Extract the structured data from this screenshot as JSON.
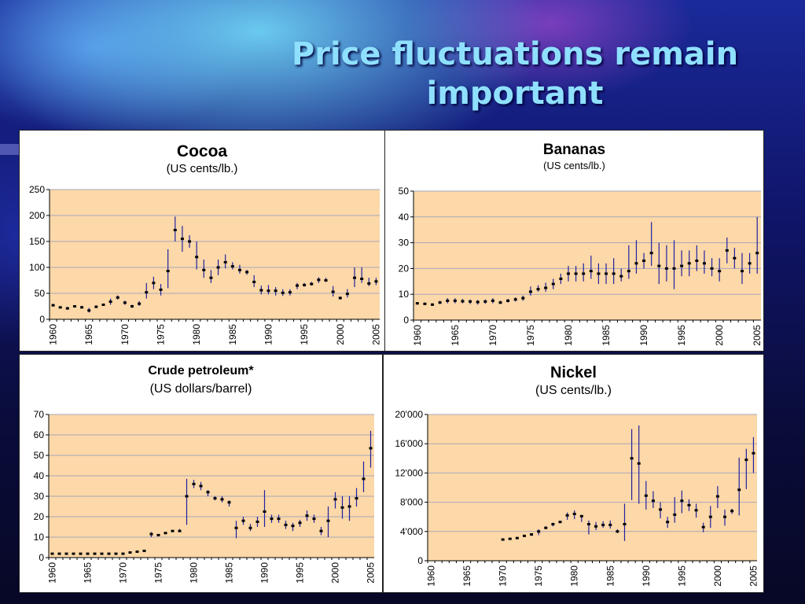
{
  "slide": {
    "title_line1": "Price fluctuations remain",
    "title_line2": "important"
  },
  "colors": {
    "plot_bg": "#fdd8a8",
    "grid": "#a8a8b8",
    "bar": "#2020a0",
    "marker": "#000000"
  },
  "chart_data": [
    {
      "id": "cocoa",
      "type": "errorbar",
      "title": "Cocoa",
      "subtitle": "(US cents/lb.)",
      "ylim": [
        0,
        250
      ],
      "yticks": [
        0,
        50,
        100,
        150,
        200,
        250
      ],
      "ytick_labels": [
        "0",
        "50",
        "100",
        "150",
        "200",
        "250"
      ],
      "xlim": [
        1960,
        2005
      ],
      "xticks": [
        "1960",
        "1965",
        "1970",
        "1975",
        "1980",
        "1985",
        "1990",
        "1995",
        "2000",
        "2005"
      ],
      "series": [
        {
          "x": [
            1960,
            1961,
            1962,
            1963,
            1964,
            1965,
            1966,
            1967,
            1968,
            1969,
            1970,
            1971,
            1972,
            1973,
            1974,
            1975,
            1976,
            1977,
            1978,
            1979,
            1980,
            1981,
            1982,
            1983,
            1984,
            1985,
            1986,
            1987,
            1988,
            1989,
            1990,
            1991,
            1992,
            1993,
            1994,
            1995,
            1996,
            1997,
            1998,
            1999,
            2000,
            2001,
            2002,
            2003,
            2004,
            2005
          ],
          "mean": [
            27,
            23,
            21,
            25,
            23,
            17,
            24,
            28,
            34,
            42,
            32,
            25,
            30,
            52,
            70,
            57,
            93,
            172,
            155,
            150,
            120,
            95,
            80,
            100,
            110,
            102,
            95,
            91,
            72,
            56,
            55,
            55,
            51,
            52,
            65,
            66,
            68,
            76,
            75,
            53,
            41,
            49,
            80,
            78,
            69,
            73
          ],
          "low": [
            25,
            21,
            19,
            23,
            21,
            13,
            22,
            26,
            28,
            38,
            28,
            22,
            26,
            40,
            58,
            46,
            60,
            150,
            130,
            138,
            96,
            80,
            70,
            85,
            98,
            96,
            88,
            86,
            62,
            48,
            48,
            46,
            45,
            46,
            58,
            63,
            65,
            70,
            72,
            44,
            38,
            42,
            62,
            70,
            64,
            66
          ],
          "high": [
            30,
            25,
            24,
            27,
            26,
            22,
            27,
            30,
            40,
            46,
            36,
            28,
            35,
            70,
            82,
            68,
            135,
            198,
            180,
            162,
            150,
            115,
            95,
            115,
            125,
            110,
            105,
            95,
            85,
            65,
            66,
            62,
            58,
            58,
            70,
            70,
            72,
            81,
            80,
            64,
            44,
            58,
            100,
            100,
            80,
            80
          ]
        }
      ]
    },
    {
      "id": "bananas",
      "type": "errorbar",
      "title": "Bananas",
      "subtitle": "(US cents/lb.)",
      "ylim": [
        0,
        50
      ],
      "yticks": [
        0,
        10,
        20,
        30,
        40,
        50
      ],
      "ytick_labels": [
        "0",
        "10",
        "20",
        "30",
        "40",
        "50"
      ],
      "xlim": [
        1960,
        2005
      ],
      "xticks": [
        "1960",
        "1965",
        "1970",
        "1975",
        "1980",
        "1985",
        "1990",
        "1995",
        "2000",
        "2005"
      ],
      "series": [
        {
          "x": [
            1960,
            1961,
            1962,
            1963,
            1964,
            1965,
            1966,
            1967,
            1968,
            1969,
            1970,
            1971,
            1972,
            1973,
            1974,
            1975,
            1976,
            1977,
            1978,
            1979,
            1980,
            1981,
            1982,
            1983,
            1984,
            1985,
            1986,
            1987,
            1988,
            1989,
            1990,
            1991,
            1992,
            1993,
            1994,
            1995,
            1996,
            1997,
            1998,
            1999,
            2000,
            2001,
            2002,
            2003,
            2004,
            2005
          ],
          "mean": [
            6.5,
            6.3,
            6,
            6.8,
            7.5,
            7.5,
            7.3,
            7.2,
            7,
            7.2,
            7.5,
            6.8,
            7.5,
            8,
            8.5,
            11,
            12,
            12.5,
            14,
            16,
            18,
            18,
            18,
            19,
            18,
            18,
            18,
            17,
            19,
            22,
            23,
            26,
            21,
            20,
            20,
            21,
            22,
            23,
            22,
            20,
            19,
            27,
            24,
            19,
            22,
            26
          ],
          "low": [
            6,
            5.8,
            5.5,
            6.2,
            6.5,
            6.5,
            6.5,
            6.2,
            6,
            6.3,
            6.5,
            6.2,
            6.8,
            7.2,
            7.5,
            9.5,
            11,
            11,
            12,
            14,
            15,
            15,
            15,
            16,
            14,
            14,
            14,
            15,
            16,
            18,
            20,
            21,
            14,
            15,
            12,
            17,
            17,
            19,
            18,
            17,
            15,
            22,
            20,
            14,
            18,
            18
          ],
          "high": [
            7,
            6.8,
            6.5,
            7.5,
            8.5,
            8.5,
            8.2,
            8,
            7.8,
            8,
            8.5,
            7.5,
            8.2,
            8.8,
            9.5,
            13,
            13.5,
            14.5,
            16,
            18,
            21,
            21,
            22,
            25,
            22,
            22,
            24,
            20,
            29,
            31,
            26,
            38,
            30,
            29,
            31,
            27,
            27,
            29,
            27,
            24,
            24,
            32,
            28,
            26,
            26,
            40
          ]
        }
      ]
    },
    {
      "id": "crude",
      "type": "errorbar",
      "title": "Crude petroleum*",
      "subtitle": "(US dollars/barrel)",
      "ylim": [
        0,
        70
      ],
      "yticks": [
        0,
        10,
        20,
        30,
        40,
        50,
        60,
        70
      ],
      "ytick_labels": [
        "0",
        "10",
        "20",
        "30",
        "40",
        "50",
        "60",
        "70"
      ],
      "xlim": [
        1960,
        2005
      ],
      "xticks": [
        "1960",
        "1965",
        "1970",
        "1975",
        "1980",
        "1985",
        "1990",
        "1995",
        "2000",
        "2005"
      ],
      "series": [
        {
          "x": [
            1960,
            1961,
            1962,
            1963,
            1964,
            1965,
            1966,
            1967,
            1968,
            1969,
            1970,
            1971,
            1972,
            1973,
            1974,
            1975,
            1976,
            1977,
            1978,
            1979,
            1980,
            1981,
            1982,
            1983,
            1984,
            1985,
            1986,
            1987,
            1988,
            1989,
            1990,
            1991,
            1992,
            1993,
            1994,
            1995,
            1996,
            1997,
            1998,
            1999,
            2000,
            2001,
            2002,
            2003,
            2004,
            2005
          ],
          "mean": [
            1.9,
            1.9,
            1.9,
            1.9,
            1.9,
            1.9,
            1.9,
            1.9,
            1.9,
            1.9,
            1.9,
            2.5,
            2.9,
            3.3,
            11.5,
            11,
            12,
            13,
            13,
            30,
            36,
            35,
            32,
            29,
            28.5,
            27,
            14.5,
            18,
            14.5,
            17.5,
            22.5,
            19,
            19,
            16,
            15.5,
            17,
            20.5,
            19,
            13,
            18,
            28.5,
            24.5,
            25,
            29,
            38.5,
            53.5
          ],
          "low": [
            1.8,
            1.8,
            1.8,
            1.8,
            1.8,
            1.8,
            1.8,
            1.8,
            1.8,
            1.8,
            1.8,
            2.3,
            2.6,
            3,
            10,
            10.5,
            11.5,
            12.5,
            12.5,
            16,
            34,
            33,
            30,
            28,
            27,
            25,
            9.5,
            16,
            13,
            15,
            15,
            17,
            17,
            14,
            13,
            15,
            18,
            17,
            11,
            10,
            24,
            19,
            18,
            25,
            32,
            44
          ]
        }
      ],
      "high_series": [
        2.0,
        2.0,
        2.0,
        2.0,
        2.0,
        2.0,
        2.0,
        2.0,
        2.0,
        2.0,
        2.0,
        2.7,
        3.1,
        3.6,
        12.5,
        11.5,
        12.5,
        13.5,
        14,
        38.5,
        38,
        37,
        33,
        30,
        30,
        28,
        18,
        20,
        16.5,
        20,
        33,
        21,
        21,
        18,
        17,
        18.5,
        23,
        21,
        15,
        25,
        32,
        30,
        30,
        34,
        47,
        62
      ]
    },
    {
      "id": "nickel",
      "type": "errorbar",
      "title": "Nickel",
      "subtitle": "(US cents/lb.)",
      "ylim": [
        0,
        20000
      ],
      "yticks": [
        0,
        4000,
        8000,
        12000,
        16000,
        20000
      ],
      "ytick_labels": [
        "0",
        "4'000",
        "8'000",
        "12'000",
        "16'000",
        "20'000"
      ],
      "xlim": [
        1960,
        2005
      ],
      "xticks": [
        "1960",
        "1965",
        "1970",
        "1975",
        "1980",
        "1985",
        "1990",
        "1995",
        "2000",
        "2005"
      ],
      "series": [
        {
          "x": [
            1970,
            1971,
            1972,
            1973,
            1974,
            1975,
            1976,
            1977,
            1978,
            1979,
            1980,
            1981,
            1982,
            1983,
            1984,
            1985,
            1986,
            1987,
            1988,
            1989,
            1990,
            1991,
            1992,
            1993,
            1994,
            1995,
            1996,
            1997,
            1998,
            1999,
            2000,
            2001,
            2002,
            2003,
            2004,
            2005
          ],
          "mean": [
            2900,
            3000,
            3100,
            3400,
            3600,
            4000,
            4500,
            5000,
            5300,
            6200,
            6400,
            6100,
            5000,
            4700,
            4900,
            4900,
            4000,
            5000,
            14000,
            13300,
            8900,
            8200,
            7000,
            5300,
            6300,
            8200,
            7600,
            6900,
            4600,
            6000,
            8800,
            6000,
            6800,
            9700,
            13800,
            14700
          ],
          "low": [
            2900,
            3000,
            3100,
            3400,
            3400,
            3500,
            4300,
            4700,
            5200,
            5600,
            5700,
            5300,
            3600,
            4200,
            4500,
            4400,
            3800,
            2700,
            8300,
            7800,
            7000,
            7200,
            5800,
            4500,
            5200,
            6500,
            6800,
            5900,
            3900,
            4500,
            7200,
            4800,
            6400,
            6200,
            9800,
            12000
          ],
          "high": [
            2900,
            3000,
            3100,
            3400,
            3700,
            4300,
            4700,
            5200,
            5400,
            6600,
            6900,
            6200,
            5500,
            5300,
            5400,
            5500,
            4300,
            7800,
            18000,
            18500,
            10900,
            9500,
            8000,
            6000,
            8700,
            9600,
            8400,
            7800,
            5200,
            7500,
            10200,
            7000,
            7100,
            14100,
            15300,
            16900
          ]
        }
      ]
    }
  ]
}
